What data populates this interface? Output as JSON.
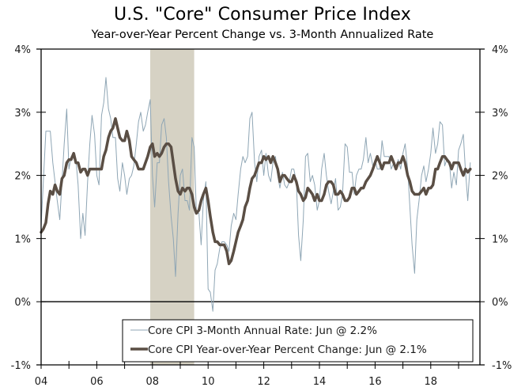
{
  "chart_data": {
    "type": "line",
    "title": "U.S. \"Core\" Consumer Price Index",
    "subtitle": "Year-over-Year Percent Change vs. 3-Month Annualized Rate",
    "xlabel": "",
    "ylabel": "",
    "xlim": [
      2004.0,
      2019.75
    ],
    "ylim": [
      -1,
      4
    ],
    "grid": false,
    "zero_line": true,
    "legend_position": "bottom-center",
    "x_ticks": [
      2004,
      2005,
      2006,
      2007,
      2008,
      2009,
      2010,
      2011,
      2012,
      2013,
      2014,
      2015,
      2016,
      2017,
      2018,
      2019
    ],
    "x_tick_labels": [
      {
        "x": 2004,
        "label": "04"
      },
      {
        "x": 2006,
        "label": "06"
      },
      {
        "x": 2008,
        "label": "08"
      },
      {
        "x": 2010,
        "label": "10"
      },
      {
        "x": 2012,
        "label": "12"
      },
      {
        "x": 2014,
        "label": "14"
      },
      {
        "x": 2016,
        "label": "16"
      },
      {
        "x": 2018,
        "label": "18"
      }
    ],
    "y_ticks": [
      4,
      3,
      2,
      1,
      0,
      -1
    ],
    "y_tick_labels": [
      "4%",
      "3%",
      "2%",
      "1%",
      "0%",
      "-1%"
    ],
    "recession_shading": [
      {
        "start": 2007.92,
        "end": 2009.5,
        "color": "#d6d2c4"
      }
    ],
    "series": [
      {
        "name": "Core CPI 3-Month Annual Rate: Jun @ 2.2%",
        "color": "#8fa6b5",
        "style": "thin",
        "x": [
          2004.0,
          2004.08,
          2004.17,
          2004.25,
          2004.33,
          2004.42,
          2004.5,
          2004.58,
          2004.67,
          2004.75,
          2004.83,
          2004.92,
          2005.0,
          2005.08,
          2005.17,
          2005.25,
          2005.33,
          2005.42,
          2005.5,
          2005.58,
          2005.67,
          2005.75,
          2005.83,
          2005.92,
          2006.0,
          2006.08,
          2006.17,
          2006.25,
          2006.33,
          2006.42,
          2006.5,
          2006.58,
          2006.67,
          2006.75,
          2006.83,
          2006.92,
          2007.0,
          2007.08,
          2007.17,
          2007.25,
          2007.33,
          2007.42,
          2007.5,
          2007.58,
          2007.67,
          2007.75,
          2007.83,
          2007.92,
          2008.0,
          2008.08,
          2008.17,
          2008.25,
          2008.33,
          2008.42,
          2008.5,
          2008.58,
          2008.67,
          2008.75,
          2008.83,
          2008.92,
          2009.0,
          2009.08,
          2009.17,
          2009.25,
          2009.33,
          2009.42,
          2009.5,
          2009.58,
          2009.67,
          2009.75,
          2009.83,
          2009.92,
          2010.0,
          2010.08,
          2010.17,
          2010.25,
          2010.33,
          2010.42,
          2010.5,
          2010.58,
          2010.67,
          2010.75,
          2010.83,
          2010.92,
          2011.0,
          2011.08,
          2011.17,
          2011.25,
          2011.33,
          2011.42,
          2011.5,
          2011.58,
          2011.67,
          2011.75,
          2011.83,
          2011.92,
          2012.0,
          2012.08,
          2012.17,
          2012.25,
          2012.33,
          2012.42,
          2012.5,
          2012.58,
          2012.67,
          2012.75,
          2012.83,
          2012.92,
          2013.0,
          2013.08,
          2013.17,
          2013.25,
          2013.33,
          2013.42,
          2013.5,
          2013.58,
          2013.67,
          2013.75,
          2013.83,
          2013.92,
          2014.0,
          2014.08,
          2014.17,
          2014.25,
          2014.33,
          2014.42,
          2014.5,
          2014.58,
          2014.67,
          2014.75,
          2014.83,
          2014.92,
          2015.0,
          2015.08,
          2015.17,
          2015.25,
          2015.33,
          2015.42,
          2015.5,
          2015.58,
          2015.67,
          2015.75,
          2015.83,
          2015.92,
          2016.0,
          2016.08,
          2016.17,
          2016.25,
          2016.33,
          2016.42,
          2016.5,
          2016.58,
          2016.67,
          2016.75,
          2016.83,
          2016.92,
          2017.0,
          2017.08,
          2017.17,
          2017.25,
          2017.33,
          2017.42,
          2017.5,
          2017.58,
          2017.67,
          2017.75,
          2017.83,
          2017.92,
          2018.0,
          2018.08,
          2018.17,
          2018.25,
          2018.33,
          2018.42,
          2018.5,
          2018.58,
          2018.67,
          2018.75,
          2018.83,
          2018.92,
          2019.0,
          2019.08,
          2019.17,
          2019.25,
          2019.33,
          2019.42
        ],
        "values": [
          1.2,
          1.9,
          2.7,
          2.7,
          2.7,
          2.2,
          1.9,
          1.6,
          1.3,
          1.9,
          2.5,
          3.05,
          2.1,
          2.3,
          2.3,
          2.25,
          1.85,
          1.0,
          1.4,
          1.05,
          1.9,
          2.5,
          2.95,
          2.65,
          2.0,
          1.85,
          2.95,
          3.15,
          3.55,
          3.05,
          2.9,
          2.6,
          2.6,
          1.95,
          1.75,
          2.2,
          2.0,
          1.7,
          1.95,
          2.0,
          2.15,
          2.5,
          2.85,
          3.0,
          2.7,
          2.8,
          3.0,
          3.2,
          2.0,
          1.5,
          2.2,
          2.2,
          2.8,
          2.9,
          2.6,
          1.9,
          1.35,
          1.0,
          0.4,
          1.4,
          2.0,
          2.1,
          1.6,
          1.6,
          1.45,
          2.6,
          2.45,
          1.4,
          1.4,
          0.9,
          1.6,
          1.9,
          0.2,
          0.15,
          -0.15,
          0.5,
          0.6,
          0.85,
          0.95,
          0.95,
          0.9,
          0.8,
          1.2,
          1.4,
          1.3,
          1.7,
          2.1,
          2.3,
          2.2,
          2.3,
          2.9,
          3.0,
          2.2,
          1.9,
          2.3,
          2.4,
          2.0,
          2.35,
          2.0,
          1.9,
          2.2,
          2.3,
          2.0,
          1.8,
          2.05,
          1.85,
          1.8,
          1.9,
          2.1,
          2.1,
          1.9,
          1.05,
          0.65,
          1.3,
          2.3,
          2.35,
          1.9,
          2.0,
          1.85,
          1.45,
          1.6,
          2.1,
          2.35,
          2.0,
          1.75,
          1.55,
          1.75,
          1.95,
          1.45,
          1.5,
          1.7,
          2.5,
          2.45,
          2.05,
          2.05,
          1.7,
          2.0,
          2.1,
          2.1,
          2.25,
          2.6,
          2.2,
          2.35,
          2.15,
          2.25,
          2.1,
          2.1,
          2.55,
          2.3,
          2.3,
          2.3,
          2.1,
          2.2,
          2.1,
          2.25,
          2.1,
          2.35,
          2.5,
          2.1,
          1.5,
          0.9,
          0.45,
          1.3,
          1.6,
          2.0,
          2.15,
          1.9,
          2.1,
          2.35,
          2.75,
          2.35,
          2.5,
          2.85,
          2.8,
          2.15,
          2.25,
          2.2,
          1.8,
          2.05,
          1.85,
          2.4,
          2.5,
          2.65,
          2.05,
          1.6,
          2.2
        ]
      },
      {
        "name": "Core CPI Year-over-Year Percent Change: Jun @ 2.1%",
        "color": "#5a4e44",
        "style": "thick",
        "x": [
          2004.0,
          2004.08,
          2004.17,
          2004.25,
          2004.33,
          2004.42,
          2004.5,
          2004.58,
          2004.67,
          2004.75,
          2004.83,
          2004.92,
          2005.0,
          2005.08,
          2005.17,
          2005.25,
          2005.33,
          2005.42,
          2005.5,
          2005.58,
          2005.67,
          2005.75,
          2005.83,
          2005.92,
          2006.0,
          2006.08,
          2006.17,
          2006.25,
          2006.33,
          2006.42,
          2006.5,
          2006.58,
          2006.67,
          2006.75,
          2006.83,
          2006.92,
          2007.0,
          2007.08,
          2007.17,
          2007.25,
          2007.33,
          2007.42,
          2007.5,
          2007.58,
          2007.67,
          2007.75,
          2007.83,
          2007.92,
          2008.0,
          2008.08,
          2008.17,
          2008.25,
          2008.33,
          2008.42,
          2008.5,
          2008.58,
          2008.67,
          2008.75,
          2008.83,
          2008.92,
          2009.0,
          2009.08,
          2009.17,
          2009.25,
          2009.33,
          2009.42,
          2009.5,
          2009.58,
          2009.67,
          2009.75,
          2009.83,
          2009.92,
          2010.0,
          2010.08,
          2010.17,
          2010.25,
          2010.33,
          2010.42,
          2010.5,
          2010.58,
          2010.67,
          2010.75,
          2010.83,
          2010.92,
          2011.0,
          2011.08,
          2011.17,
          2011.25,
          2011.33,
          2011.42,
          2011.5,
          2011.58,
          2011.67,
          2011.75,
          2011.83,
          2011.92,
          2012.0,
          2012.08,
          2012.17,
          2012.25,
          2012.33,
          2012.42,
          2012.5,
          2012.58,
          2012.67,
          2012.75,
          2012.83,
          2012.92,
          2013.0,
          2013.08,
          2013.17,
          2013.25,
          2013.33,
          2013.42,
          2013.5,
          2013.58,
          2013.67,
          2013.75,
          2013.83,
          2013.92,
          2014.0,
          2014.08,
          2014.17,
          2014.25,
          2014.33,
          2014.42,
          2014.5,
          2014.58,
          2014.67,
          2014.75,
          2014.83,
          2014.92,
          2015.0,
          2015.08,
          2015.17,
          2015.25,
          2015.33,
          2015.42,
          2015.5,
          2015.58,
          2015.67,
          2015.75,
          2015.83,
          2015.92,
          2016.0,
          2016.08,
          2016.17,
          2016.25,
          2016.33,
          2016.42,
          2016.5,
          2016.58,
          2016.67,
          2016.75,
          2016.83,
          2016.92,
          2017.0,
          2017.08,
          2017.17,
          2017.25,
          2017.33,
          2017.42,
          2017.5,
          2017.58,
          2017.67,
          2017.75,
          2017.83,
          2017.92,
          2018.0,
          2018.08,
          2018.17,
          2018.25,
          2018.33,
          2018.42,
          2018.5,
          2018.58,
          2018.67,
          2018.75,
          2018.83,
          2018.92,
          2019.0,
          2019.08,
          2019.17,
          2019.25,
          2019.33,
          2019.42
        ],
        "values": [
          1.1,
          1.15,
          1.25,
          1.55,
          1.75,
          1.7,
          1.85,
          1.75,
          1.7,
          1.95,
          2.0,
          2.2,
          2.25,
          2.25,
          2.35,
          2.2,
          2.2,
          2.05,
          2.1,
          2.1,
          2.0,
          2.1,
          2.1,
          2.1,
          2.1,
          2.1,
          2.1,
          2.3,
          2.4,
          2.6,
          2.7,
          2.75,
          2.9,
          2.75,
          2.6,
          2.55,
          2.55,
          2.7,
          2.55,
          2.3,
          2.25,
          2.2,
          2.1,
          2.1,
          2.1,
          2.2,
          2.3,
          2.45,
          2.5,
          2.3,
          2.35,
          2.3,
          2.35,
          2.45,
          2.5,
          2.5,
          2.45,
          2.2,
          1.95,
          1.75,
          1.7,
          1.8,
          1.75,
          1.8,
          1.8,
          1.7,
          1.5,
          1.4,
          1.45,
          1.6,
          1.7,
          1.8,
          1.6,
          1.35,
          1.1,
          0.95,
          0.95,
          0.9,
          0.9,
          0.9,
          0.8,
          0.6,
          0.65,
          0.8,
          0.95,
          1.1,
          1.2,
          1.3,
          1.5,
          1.6,
          1.8,
          1.95,
          2.0,
          2.1,
          2.2,
          2.2,
          2.3,
          2.25,
          2.3,
          2.2,
          2.3,
          2.2,
          2.1,
          1.9,
          2.0,
          2.0,
          1.95,
          1.9,
          1.9,
          2.0,
          1.9,
          1.75,
          1.7,
          1.6,
          1.65,
          1.8,
          1.75,
          1.7,
          1.6,
          1.7,
          1.6,
          1.6,
          1.7,
          1.85,
          1.9,
          1.9,
          1.85,
          1.7,
          1.7,
          1.75,
          1.7,
          1.6,
          1.6,
          1.65,
          1.8,
          1.8,
          1.7,
          1.75,
          1.8,
          1.8,
          1.9,
          1.95,
          2.0,
          2.1,
          2.2,
          2.3,
          2.2,
          2.1,
          2.2,
          2.2,
          2.2,
          2.3,
          2.2,
          2.1,
          2.2,
          2.2,
          2.3,
          2.2,
          2.0,
          1.9,
          1.75,
          1.7,
          1.7,
          1.7,
          1.75,
          1.8,
          1.7,
          1.8,
          1.8,
          1.85,
          2.1,
          2.1,
          2.2,
          2.3,
          2.3,
          2.25,
          2.2,
          2.1,
          2.2,
          2.2,
          2.2,
          2.1,
          2.0,
          2.1,
          2.05,
          2.1
        ]
      }
    ]
  }
}
